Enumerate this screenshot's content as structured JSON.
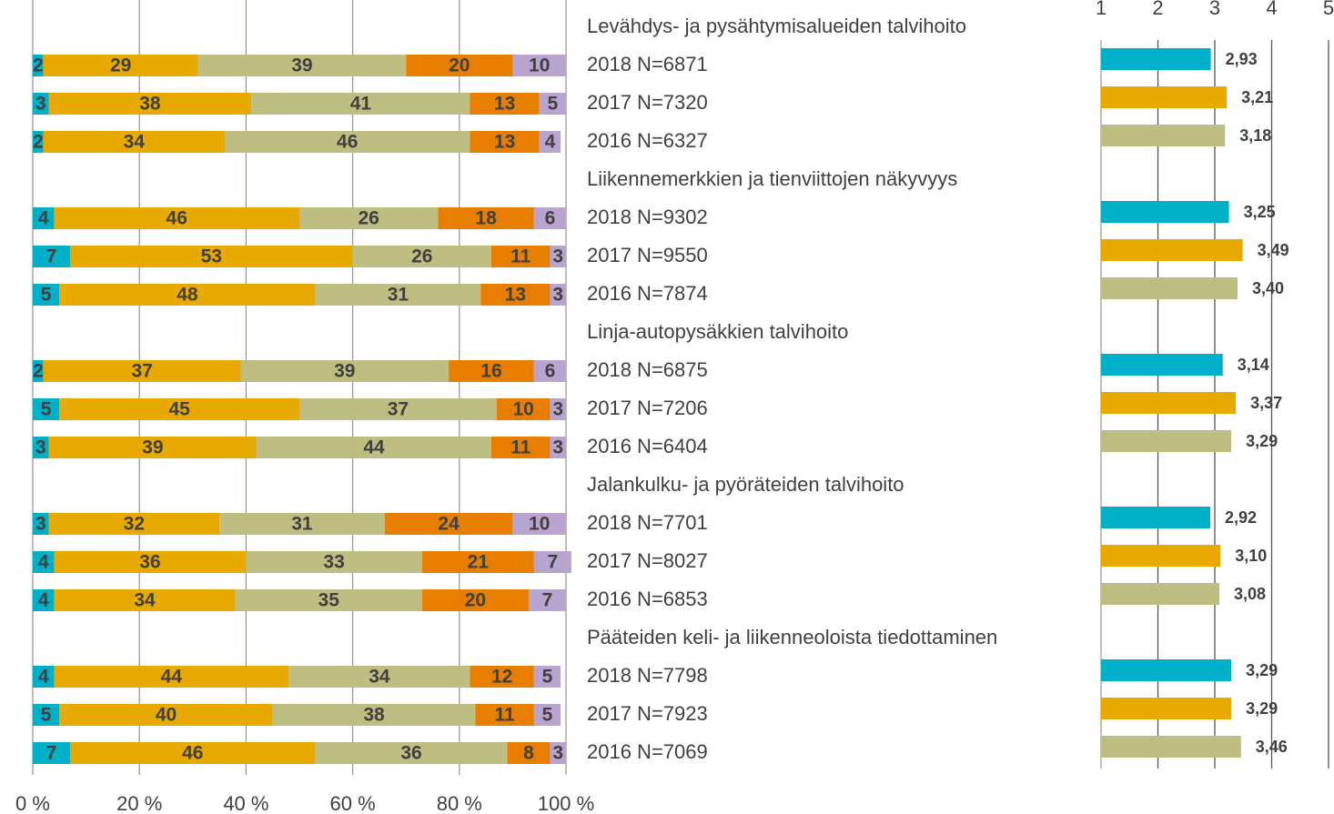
{
  "chart_data": [
    {
      "type": "stacked_barh",
      "groups": [
        "Levähdys- ja pysähtymisalueiden talvihoito",
        "Liikennemerkkien ja tienviittojen näkyvyys",
        "Linja-autopysäkkien talvihoito",
        "Jalankulku- ja pyöräteiden talvihoito",
        "Pääteiden keli- ja liikenneoloista tiedottaminen"
      ],
      "categories": [
        "2018 N=6871",
        "2017 N=7320",
        "2016 N=6327",
        "2018 N=9302",
        "2017 N=9550",
        "2016 N=7874",
        "2018 N=6875",
        "2017 N=7206",
        "2016 N=6404",
        "2018 N=7701",
        "2017 N=8027",
        "2016 N=6853",
        "2018 N=7798",
        "2017 N=7923",
        "2016 N=7069"
      ],
      "series": [
        {
          "color": "#00afc8",
          "values": [
            2,
            3,
            2,
            4,
            7,
            5,
            2,
            5,
            3,
            3,
            4,
            4,
            4,
            5,
            7
          ]
        },
        {
          "color": "#e8a900",
          "values": [
            29,
            38,
            34,
            46,
            53,
            48,
            37,
            45,
            39,
            32,
            36,
            34,
            44,
            40,
            46
          ]
        },
        {
          "color": "#bebe82",
          "values": [
            39,
            41,
            46,
            26,
            26,
            31,
            39,
            37,
            44,
            31,
            33,
            35,
            34,
            38,
            36
          ]
        },
        {
          "color": "#e87e00",
          "values": [
            20,
            13,
            13,
            18,
            11,
            13,
            16,
            10,
            11,
            24,
            21,
            20,
            12,
            11,
            8
          ]
        },
        {
          "color": "#b9a3cf",
          "values": [
            10,
            5,
            4,
            6,
            3,
            3,
            6,
            3,
            3,
            10,
            7,
            7,
            5,
            5,
            3
          ]
        }
      ],
      "xlim": [
        0,
        100
      ],
      "xticks": [
        {
          "value": 0,
          "label": "0 %"
        },
        {
          "value": 20,
          "label": "20 %"
        },
        {
          "value": 40,
          "label": "40 %"
        },
        {
          "value": 60,
          "label": "60 %"
        },
        {
          "value": 80,
          "label": "80 %"
        },
        {
          "value": 100,
          "label": "100 %"
        }
      ],
      "grid": true
    },
    {
      "type": "barh",
      "values": [
        2.93,
        3.21,
        3.18,
        3.25,
        3.49,
        3.4,
        3.14,
        3.37,
        3.29,
        2.92,
        3.1,
        3.08,
        3.29,
        3.29,
        3.46
      ],
      "value_labels": [
        "2,93",
        "3,21",
        "3,18",
        "3,25",
        "3,49",
        "3,40",
        "3,14",
        "3,37",
        "3,29",
        "2,92",
        "3,10",
        "3,08",
        "3,29",
        "3,29",
        "3,46"
      ],
      "colors": [
        "#00afc8",
        "#e8a900",
        "#bebe82"
      ],
      "xlim": [
        1,
        5
      ],
      "xticks": [
        1,
        2,
        3,
        4,
        5
      ],
      "grid": true
    }
  ]
}
